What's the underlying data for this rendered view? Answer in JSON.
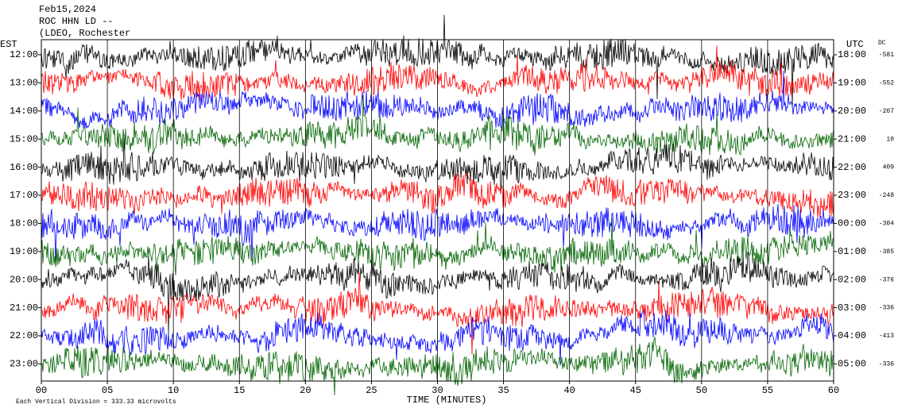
{
  "chart_data": {
    "type": "helicorder",
    "title": "Feb15,2024",
    "subtitle": "ROC HHN LD --",
    "station": "(LDEO, Rochester",
    "left_axis_label": "EST",
    "right_axis_label": "UTC",
    "dc_label": "DC",
    "xlabel": "TIME (MINUTES)",
    "footer": "Each Vertical Division = 333.33 microvolts",
    "xlim": [
      0,
      60
    ],
    "xticks": [
      {
        "value": 0,
        "label": "00"
      },
      {
        "value": 5,
        "label": "05"
      },
      10,
      15,
      20,
      25,
      30,
      35,
      40,
      45,
      50,
      55,
      60
    ],
    "colors": [
      "#000000",
      "#ff0000",
      "#0000ff",
      "#006400"
    ],
    "rows": [
      {
        "est": "12:00",
        "utc": "18:00",
        "dc": -581
      },
      {
        "est": "13:00",
        "utc": "19:00",
        "dc": -552
      },
      {
        "est": "14:00",
        "utc": "20:00",
        "dc": -207
      },
      {
        "est": "15:00",
        "utc": "21:00",
        "dc": 10
      },
      {
        "est": "16:00",
        "utc": "22:00",
        "dc": 409
      },
      {
        "est": "17:00",
        "utc": "23:00",
        "dc": -248
      },
      {
        "est": "18:00",
        "utc": "00:00",
        "dc": -304
      },
      {
        "est": "19:00",
        "utc": "01:00",
        "dc": -385
      },
      {
        "est": "20:00",
        "utc": "02:00",
        "dc": -376
      },
      {
        "est": "21:00",
        "utc": "03:00",
        "dc": -336
      },
      {
        "est": "22:00",
        "utc": "04:00",
        "dc": -413
      },
      {
        "est": "23:00",
        "utc": "05:00",
        "dc": -336
      }
    ]
  }
}
